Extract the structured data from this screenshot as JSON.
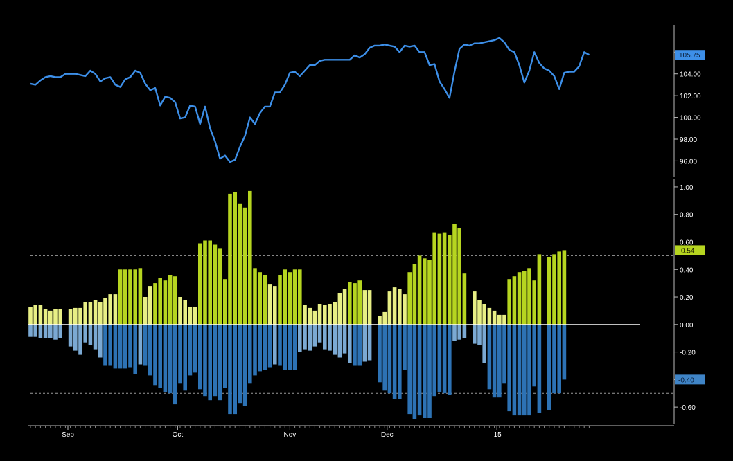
{
  "chart_data": [
    {
      "type": "line",
      "series": [
        {
          "values": [
            103.1,
            103.0,
            103.4,
            103.7,
            103.8,
            103.7,
            103.7,
            104.0,
            104.0,
            104.0,
            103.9,
            103.8,
            104.3,
            104.0,
            103.3,
            103.6,
            103.7,
            103.0,
            102.8,
            103.5,
            103.7,
            104.3,
            104.1,
            103.1,
            102.5,
            102.7,
            101.1,
            101.9,
            101.8,
            101.4,
            99.9,
            100.0,
            101.1,
            101.0,
            99.4,
            101.0,
            99.0,
            97.8,
            96.2,
            96.5,
            95.9,
            96.1,
            97.3,
            98.3,
            100.0,
            99.4,
            100.4,
            101.0,
            101.0,
            102.3,
            102.3,
            103.0,
            104.1,
            104.2,
            103.8,
            104.3,
            104.8,
            104.8,
            105.2,
            105.3,
            105.3,
            105.3,
            105.3,
            105.3,
            105.3,
            105.7,
            105.5,
            105.8,
            106.4,
            106.6,
            106.6,
            106.7,
            106.6,
            106.5,
            106.0,
            106.6,
            106.5,
            106.6,
            106.0,
            106.0,
            104.8,
            104.9,
            103.3,
            102.6,
            101.8,
            104.2,
            106.3,
            106.7,
            106.6,
            106.8,
            106.8,
            106.9,
            107.0,
            107.1,
            107.3,
            106.9,
            106.2,
            106.0,
            104.8,
            103.2,
            104.3,
            106.0,
            105.0,
            104.5,
            104.3,
            103.8,
            102.6,
            104.1,
            104.2,
            104.2,
            104.7,
            106.0,
            105.75
          ]
        }
      ],
      "ylim": [
        94.5,
        108.5
      ],
      "yticks": [
        "96.00",
        "98.00",
        "100.00",
        "102.00",
        "104.00",
        "106.00"
      ],
      "last_value_label": "105.75",
      "color": "#3d8fe8"
    },
    {
      "type": "bar",
      "series": [
        {
          "values": [
            0.13,
            0.14,
            0.14,
            0.11,
            0.1,
            0.11,
            0.11,
            null,
            0.11,
            0.12,
            0.12,
            0.16,
            0.16,
            0.18,
            0.16,
            0.19,
            0.22,
            0.22,
            0.4,
            0.4,
            0.4,
            0.4,
            0.41,
            0.2,
            0.28,
            0.3,
            0.34,
            0.32,
            0.36,
            0.35,
            0.2,
            0.18,
            0.13,
            0.13,
            0.59,
            0.61,
            0.61,
            0.58,
            0.55,
            0.33,
            0.95,
            0.96,
            0.88,
            0.85,
            0.97,
            0.41,
            0.38,
            0.36,
            0.29,
            0.28,
            0.36,
            0.4,
            0.38,
            0.4,
            0.4,
            0.14,
            0.12,
            0.1,
            0.15,
            0.14,
            0.15,
            0.16,
            0.23,
            0.26,
            0.31,
            0.3,
            0.32,
            0.25,
            0.25,
            null,
            0.06,
            0.09,
            0.24,
            0.27,
            0.26,
            0.22,
            0.38,
            0.44,
            0.5,
            0.48,
            0.47,
            0.67,
            0.66,
            0.67,
            0.65,
            0.73,
            0.7,
            0.37,
            null,
            0.24,
            0.18,
            0.15,
            0.12,
            0.1,
            0.07,
            0.07,
            0.33,
            0.35,
            0.38,
            0.39,
            0.41,
            0.32,
            0.51,
            null,
            0.49,
            0.51,
            0.53,
            0.54
          ]
        },
        {
          "values": [
            -0.09,
            -0.09,
            -0.1,
            -0.1,
            -0.1,
            -0.11,
            -0.1,
            null,
            -0.16,
            -0.19,
            -0.22,
            -0.13,
            -0.15,
            -0.18,
            -0.24,
            -0.3,
            -0.3,
            -0.32,
            -0.32,
            -0.32,
            -0.31,
            -0.36,
            -0.29,
            -0.3,
            -0.37,
            -0.44,
            -0.46,
            -0.49,
            -0.5,
            -0.58,
            -0.43,
            -0.48,
            -0.37,
            -0.35,
            -0.47,
            -0.52,
            -0.55,
            -0.52,
            -0.55,
            -0.46,
            -0.65,
            -0.65,
            -0.57,
            -0.59,
            -0.43,
            -0.37,
            -0.34,
            -0.33,
            -0.31,
            -0.29,
            -0.3,
            -0.33,
            -0.33,
            -0.33,
            -0.2,
            -0.18,
            -0.19,
            -0.16,
            -0.13,
            -0.18,
            -0.19,
            -0.22,
            -0.24,
            -0.21,
            -0.28,
            -0.3,
            -0.3,
            -0.27,
            -0.26,
            null,
            -0.42,
            -0.48,
            -0.5,
            -0.54,
            -0.54,
            -0.33,
            -0.65,
            -0.69,
            -0.66,
            -0.68,
            -0.68,
            -0.52,
            -0.49,
            -0.5,
            -0.51,
            -0.12,
            -0.11,
            -0.1,
            null,
            -0.14,
            -0.15,
            -0.28,
            -0.47,
            -0.53,
            -0.53,
            -0.43,
            -0.63,
            -0.66,
            -0.66,
            -0.66,
            -0.66,
            -0.45,
            -0.64,
            null,
            -0.62,
            -0.5,
            -0.5,
            -0.4
          ]
        }
      ],
      "ylim": [
        -0.72,
        1.06
      ],
      "yticks": [
        "-0.60",
        "-0.40",
        "-0.20",
        "0.00",
        "0.20",
        "0.40",
        "0.60",
        "0.80",
        "1.00"
      ],
      "reference_lines": [
        0.5,
        -0.5
      ],
      "last_positive_label": "0.54",
      "last_negative_label": "-0.40",
      "colors": {
        "positive_light": "#e8ef85",
        "positive_dark": "#b6d520",
        "negative_light": "#7ba9d3",
        "negative_dark": "#2d72b4",
        "threshold": 0.3
      }
    }
  ],
  "x_axis": {
    "labels": [
      {
        "text": "Sep",
        "index": 7.5
      },
      {
        "text": "Oct",
        "index": 29.5
      },
      {
        "text": "Nov",
        "index": 52
      },
      {
        "text": "Dec",
        "index": 71.5
      },
      {
        "text": "'15",
        "index": 93.5
      }
    ]
  }
}
